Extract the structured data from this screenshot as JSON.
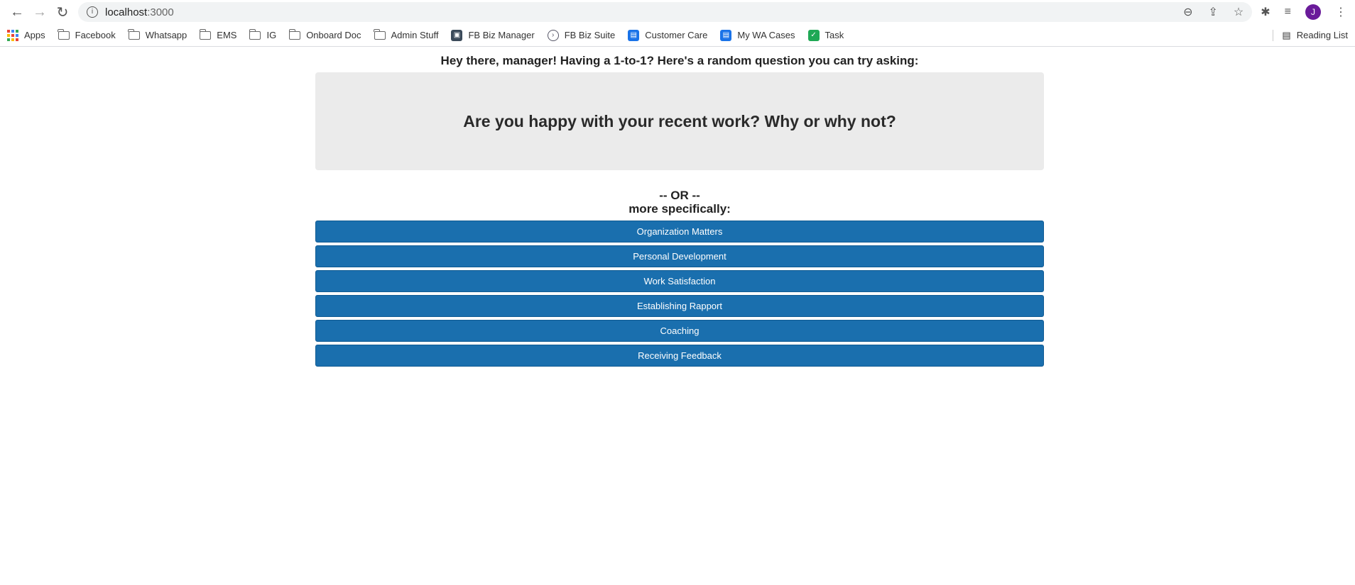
{
  "browser": {
    "url_host": "localhost",
    "url_port": ":3000",
    "avatar_initial": "J",
    "bookmarks": [
      {
        "label": "Apps",
        "icon": "apps-grid-icon"
      },
      {
        "label": "Facebook",
        "icon": "folder-icon"
      },
      {
        "label": "Whatsapp",
        "icon": "folder-icon"
      },
      {
        "label": "EMS",
        "icon": "folder-icon"
      },
      {
        "label": "IG",
        "icon": "folder-icon"
      },
      {
        "label": "Onboard Doc",
        "icon": "folder-icon"
      },
      {
        "label": "Admin Stuff",
        "icon": "folder-icon"
      },
      {
        "label": "FB Biz Manager",
        "icon": "fb-biz-manager-icon"
      },
      {
        "label": "FB Biz Suite",
        "icon": "fb-biz-suite-icon"
      },
      {
        "label": "Customer Care",
        "icon": "customer-care-icon"
      },
      {
        "label": "My WA Cases",
        "icon": "wa-cases-icon"
      },
      {
        "label": "Task",
        "icon": "task-check-icon"
      }
    ],
    "reading_list": "Reading List"
  },
  "page": {
    "intro": "Hey there, manager! Having a 1-to-1? Here's a random question you can try asking:",
    "question": "Are you happy with your recent work? Why or why not?",
    "or_label": "-- OR --",
    "specific_label": "more specifically:",
    "categories": [
      "Organization Matters",
      "Personal Development",
      "Work Satisfaction",
      "Establishing Rapport",
      "Coaching",
      "Receiving Feedback"
    ],
    "button_color": "#1a6fae"
  }
}
